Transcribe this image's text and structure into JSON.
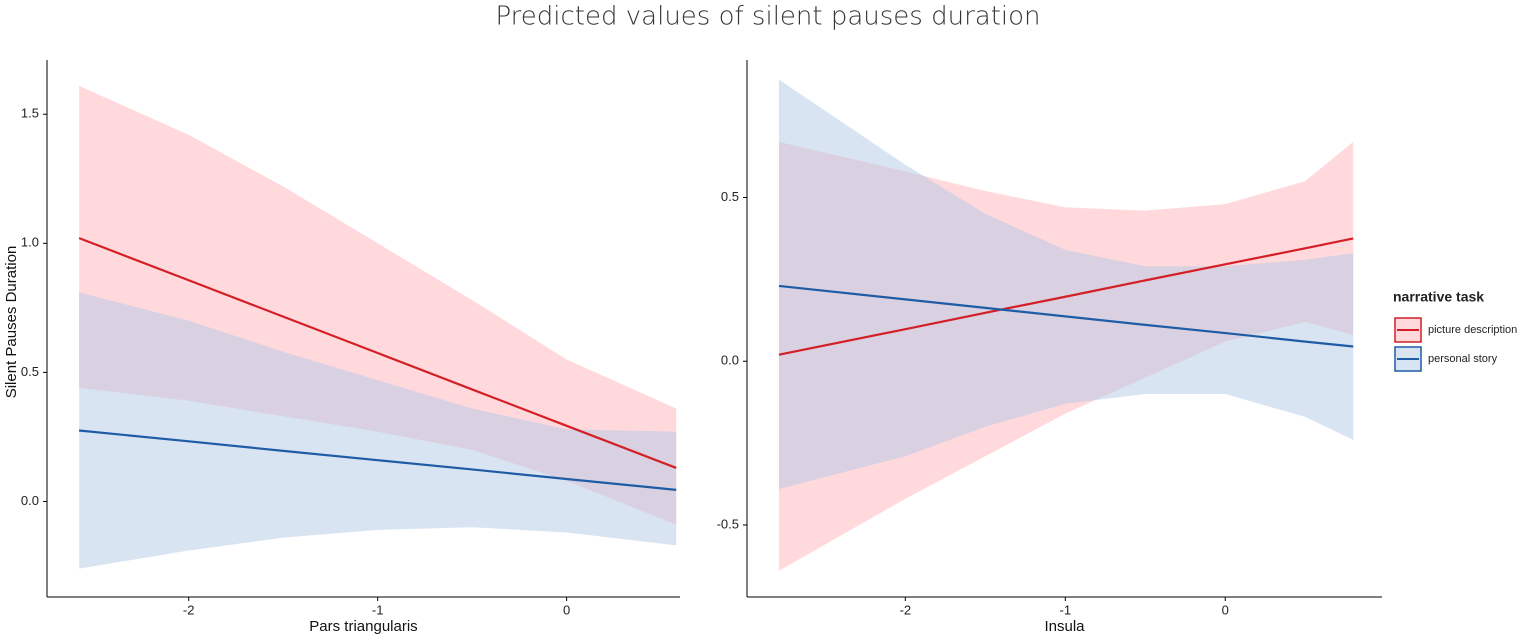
{
  "title": "Predicted values of silent pauses duration",
  "chart_data": [
    {
      "type": "line",
      "x_label": "Pars triangularis",
      "y_label": "Silent Pauses Duration",
      "xlim": [
        -2.75,
        0.6
      ],
      "ylim": [
        -0.37,
        1.71
      ],
      "xticks": [
        -2,
        -1,
        0
      ],
      "yticks": [
        {
          "value": 0,
          "label": "0.0"
        },
        0.5,
        {
          "value": 1,
          "label": "1.0"
        },
        1.5
      ],
      "x": [
        -2.58,
        -2,
        -1.5,
        -1,
        -0.5,
        0,
        0.58
      ],
      "series": [
        {
          "color": "#d41f26",
          "band_color": "#ffb3ba",
          "values": [
            1.02,
            0.857,
            0.716,
            0.575,
            0.434,
            0.293,
            0.13
          ],
          "lower": [
            0.44,
            0.39,
            0.33,
            0.27,
            0.2,
            0.08,
            -0.09
          ],
          "upper": [
            1.61,
            1.42,
            1.22,
            1.0,
            0.78,
            0.55,
            0.36
          ]
        },
        {
          "color": "#1f5ca6",
          "band_color": "#b3c9e6",
          "values": [
            0.275,
            0.233,
            0.196,
            0.16,
            0.124,
            0.087,
            0.045
          ],
          "lower": [
            -0.26,
            -0.19,
            -0.14,
            -0.11,
            -0.1,
            -0.12,
            -0.17
          ],
          "upper": [
            0.81,
            0.7,
            0.58,
            0.47,
            0.36,
            0.28,
            0.27
          ]
        }
      ]
    },
    {
      "type": "line",
      "x_label": "Insula",
      "legend_title": "narrative task",
      "xlim": [
        -2.99,
        0.98
      ],
      "ylim": [
        -0.72,
        0.92
      ],
      "xticks": [
        -2,
        -1,
        0
      ],
      "yticks": [
        -0.5,
        {
          "value": 0,
          "label": "0.0"
        },
        0.5
      ],
      "x": [
        -2.79,
        -2,
        -1.5,
        -1,
        -0.5,
        0,
        0.5,
        0.8
      ],
      "series": [
        {
          "name": "picture description",
          "color": "#d41f26",
          "band_color": "#ffb3ba",
          "values": [
            0.02,
            0.098,
            0.148,
            0.197,
            0.247,
            0.296,
            0.345,
            0.375
          ],
          "lower": [
            -0.64,
            -0.42,
            -0.29,
            -0.16,
            -0.05,
            0.06,
            0.12,
            0.08
          ],
          "upper": [
            0.67,
            0.58,
            0.52,
            0.47,
            0.46,
            0.48,
            0.55,
            0.67
          ]
        },
        {
          "name": "personal story",
          "color": "#1f5ca6",
          "band_color": "#b3c9e6",
          "values": [
            0.23,
            0.189,
            0.163,
            0.137,
            0.111,
            0.086,
            0.06,
            0.045
          ],
          "lower": [
            -0.39,
            -0.29,
            -0.2,
            -0.13,
            -0.1,
            -0.1,
            -0.17,
            -0.24
          ],
          "upper": [
            0.86,
            0.6,
            0.45,
            0.34,
            0.29,
            0.29,
            0.31,
            0.33
          ]
        }
      ]
    }
  ]
}
